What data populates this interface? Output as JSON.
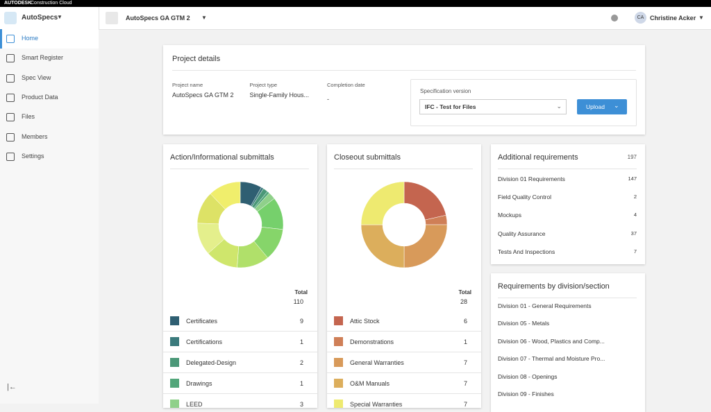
{
  "brand": {
    "mark": "AUTODESK",
    "product": "Construction Cloud"
  },
  "app": "AutoSpecs",
  "project": "AutoSpecs GA GTM 2",
  "user": {
    "initials": "CA",
    "name": "Christine Acker"
  },
  "nav": [
    "Home",
    "Smart Register",
    "Spec View",
    "Product Data",
    "Files",
    "Members",
    "Settings"
  ],
  "project_details": {
    "title": "Project details",
    "fields": [
      {
        "label": "Project name",
        "value": "AutoSpecs GA GTM 2"
      },
      {
        "label": "Project type",
        "value": "Single-Family Hous..."
      },
      {
        "label": "Completion date",
        "value": "-"
      }
    ],
    "spec_label": "Specification version",
    "spec_value": "IFC - Test for Files",
    "upload": "Upload"
  },
  "action": {
    "title": "Action/Informational submittals",
    "total_label": "Total",
    "total": 110,
    "items": [
      {
        "name": "Certificates",
        "value": 9,
        "color": "#2f5f72"
      },
      {
        "name": "Certifications",
        "value": 1,
        "color": "#3a7a7c"
      },
      {
        "name": "Delegated-Design",
        "value": 2,
        "color": "#4b9878"
      },
      {
        "name": "Drawings",
        "value": 1,
        "color": "#52a67a"
      },
      {
        "name": "LEED",
        "value": 3,
        "color": "#8fd08a"
      }
    ]
  },
  "closeout": {
    "title": "Closeout submittals",
    "total_label": "Total",
    "total": 28,
    "items": [
      {
        "name": "Attic Stock",
        "value": 6,
        "color": "#c4654f"
      },
      {
        "name": "Demonstrations",
        "value": 1,
        "color": "#cf7f57"
      },
      {
        "name": "General Warranties",
        "value": 7,
        "color": "#d89a5a"
      },
      {
        "name": "O&M Manuals",
        "value": 7,
        "color": "#dcae5c"
      },
      {
        "name": "Special Warranties",
        "value": 7,
        "color": "#eeea70"
      }
    ]
  },
  "additional": {
    "title": "Additional requirements",
    "total": 197,
    "items": [
      {
        "name": "Division 01 Requirements",
        "value": 147
      },
      {
        "name": "Field Quality Control",
        "value": 2
      },
      {
        "name": "Mockups",
        "value": 4
      },
      {
        "name": "Quality Assurance",
        "value": 37
      },
      {
        "name": "Tests And Inspections",
        "value": 7
      }
    ]
  },
  "requirements": {
    "title": "Requirements by division/section",
    "items": [
      "Division 01 - General Requirements",
      "Division 05 - Metals",
      "Division 06 - Wood, Plastics and Comp...",
      "Division 07 - Thermal and Moisture Pro...",
      "Division 08 - Openings",
      "Division 09 - Finishes"
    ]
  }
}
